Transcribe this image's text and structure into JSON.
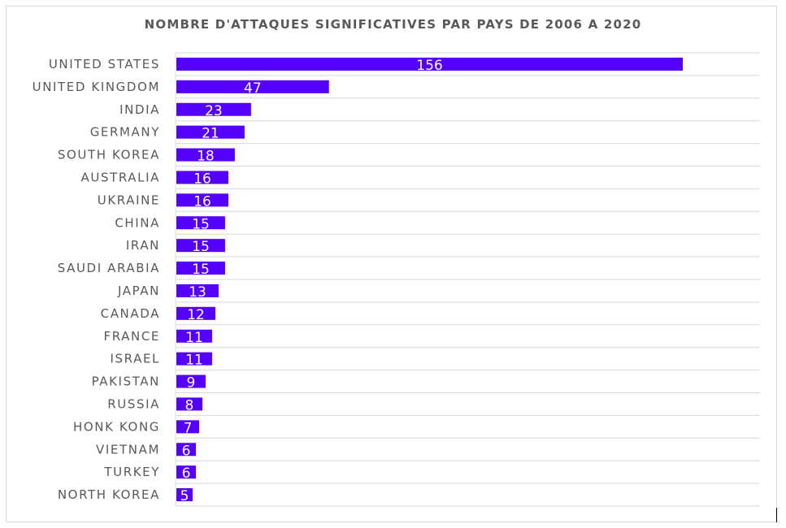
{
  "chart_data": {
    "type": "bar",
    "orientation": "horizontal",
    "title": "NOMBRE D'ATTAQUES SIGNIFICATIVES PAR PAYS DE 2006 A 2020",
    "categories": [
      "UNITED STATES",
      "UNITED KINGDOM",
      "INDIA",
      "GERMANY",
      "SOUTH KOREA",
      "AUSTRALIA",
      "UKRAINE",
      "CHINA",
      "IRAN",
      "SAUDI ARABIA",
      "JAPAN",
      "CANADA",
      "FRANCE",
      "ISRAEL",
      "PAKISTAN",
      "RUSSIA",
      "HONK KONG",
      "VIETNAM",
      "TURKEY",
      "NORTH KOREA"
    ],
    "values": [
      156,
      47,
      23,
      21,
      18,
      16,
      16,
      15,
      15,
      15,
      13,
      12,
      11,
      11,
      9,
      8,
      7,
      6,
      6,
      5
    ],
    "data_labels": true,
    "bar_color": "#5500ff",
    "label_color": "#ffffff",
    "category_color": "#595959",
    "gridline_color": "#d9d9d9",
    "grid": "horizontal",
    "legend": "none"
  }
}
